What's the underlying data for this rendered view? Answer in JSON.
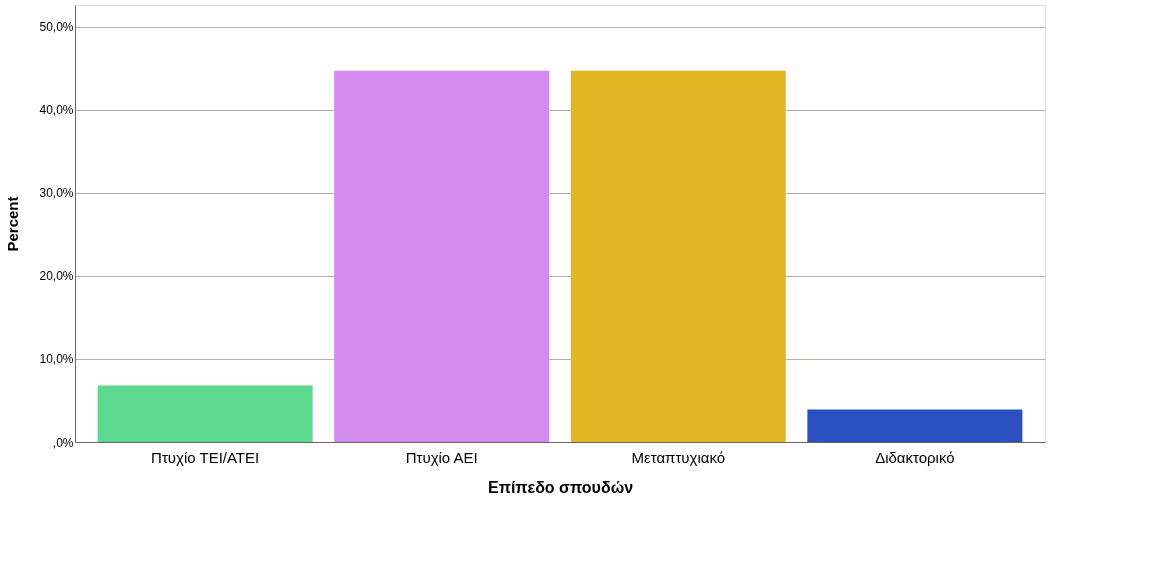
{
  "chart_data": {
    "type": "bar",
    "xlabel": "Επίπεδο σπουδών",
    "ylabel": "Percent",
    "categories": [
      "Πτυχίο ΤΕΙ/ΑΤΕΙ",
      "Πτυχίο ΑΕΙ",
      "Μεταπτυχιακό",
      "Διδακτορικό"
    ],
    "values": [
      6.8,
      44.7,
      44.7,
      3.9
    ],
    "colors": [
      "#5cd88f",
      "#d28cf0",
      "#e2b524",
      "#2a4fbf"
    ],
    "ylim": [
      0,
      52.6
    ],
    "yticks": [
      {
        "value": 0,
        "label": ",0%"
      },
      {
        "value": 10,
        "label": "10,0%"
      },
      {
        "value": 20,
        "label": "20,0%"
      },
      {
        "value": 30,
        "label": "30,0%"
      },
      {
        "value": 40,
        "label": "40,0%"
      },
      {
        "value": 50,
        "label": "50,0%"
      }
    ],
    "grid": "y"
  }
}
